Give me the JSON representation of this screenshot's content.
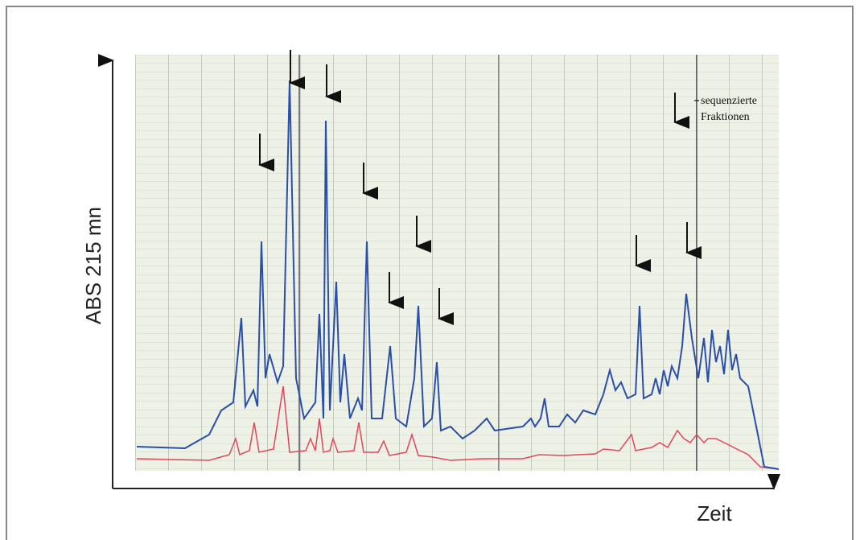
{
  "axes": {
    "y_label": "ABS 215 mn",
    "x_label": "Zeit"
  },
  "legend": {
    "line1": "sequenzierte",
    "line2": "Fraktionen"
  }
}
